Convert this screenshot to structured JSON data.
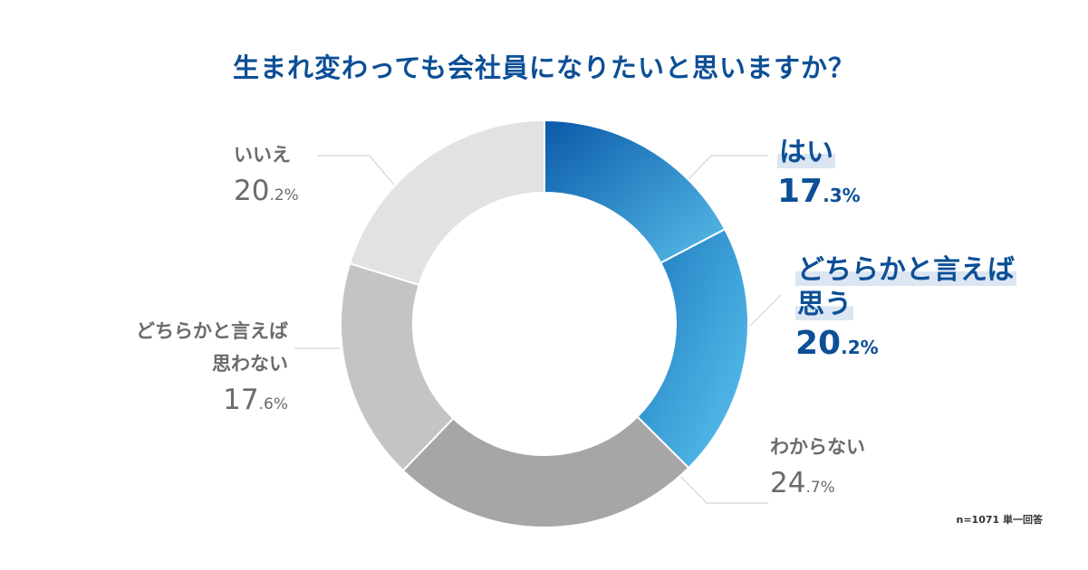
{
  "chart_data": {
    "type": "pie",
    "title": "生まれ変わっても会社員になりたいと思いますか？",
    "note": "n=1071 単一回答",
    "slices": [
      {
        "label": "はい",
        "pct_main": "17",
        "pct_dec": ".3%",
        "value": 17.3,
        "color": [
          "#0a5aa8",
          "#58bde9"
        ],
        "highlight": true
      },
      {
        "label": "どちらかと言えば",
        "label2": "思う",
        "pct_main": "20",
        "pct_dec": ".2%",
        "value": 20.2,
        "color": [
          "#1d7bc0",
          "#5cc3ee"
        ],
        "highlight": true
      },
      {
        "label": "わからない",
        "pct_main": "24",
        "pct_dec": ".7%",
        "value": 24.7,
        "color": [
          "#a6a6a6",
          "#a6a6a6"
        ],
        "highlight": false
      },
      {
        "label": "どちらかと言えば",
        "label2": "思わない",
        "pct_main": "17",
        "pct_dec": ".6%",
        "value": 17.6,
        "color": [
          "#c4c4c4",
          "#c4c4c4"
        ],
        "highlight": false
      },
      {
        "label": "いいえ",
        "pct_main": "20",
        "pct_dec": ".2%",
        "value": 20.2,
        "color": [
          "#e2e2e2",
          "#e2e2e2"
        ],
        "highlight": false
      }
    ]
  }
}
